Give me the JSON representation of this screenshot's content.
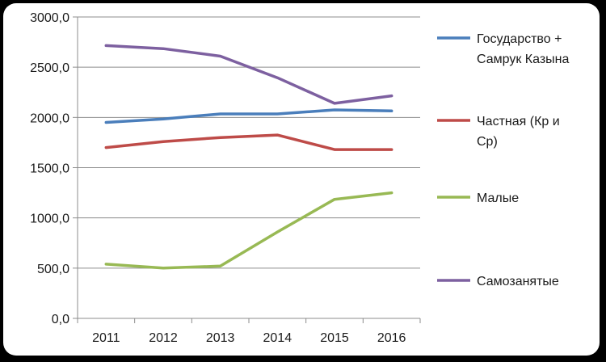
{
  "chart_data": {
    "type": "line",
    "categories": [
      "2011",
      "2012",
      "2013",
      "2014",
      "2015",
      "2016"
    ],
    "ylim": [
      0,
      3000
    ],
    "yticks": [
      0,
      500,
      1000,
      1500,
      2000,
      2500,
      3000
    ],
    "ytick_labels": [
      "0,0",
      "500,0",
      "1000,0",
      "1500,0",
      "2000,0",
      "2500,0",
      "3000,0"
    ],
    "grid": true,
    "legend_position": "right",
    "series": [
      {
        "name": "Государство + Самрук Казына",
        "name_lines": [
          "Государство +",
          "Самрук Казына"
        ],
        "color": "#4a7ebb",
        "values": [
          1950,
          1985,
          2035,
          2035,
          2075,
          2065
        ]
      },
      {
        "name": "Частная (Кр и Ср)",
        "name_lines": [
          "Частная (Кр и",
          "Ср)"
        ],
        "color": "#be4b48",
        "values": [
          1700,
          1760,
          1800,
          1825,
          1680,
          1680
        ]
      },
      {
        "name": "Малые",
        "name_lines": [
          "Малые"
        ],
        "color": "#98b954",
        "values": [
          540,
          500,
          520,
          860,
          1185,
          1250
        ]
      },
      {
        "name": "Самозанятые",
        "name_lines": [
          "Самозанятые"
        ],
        "color": "#7d60a0",
        "values": [
          2715,
          2685,
          2610,
          2395,
          2140,
          2215
        ]
      }
    ]
  }
}
